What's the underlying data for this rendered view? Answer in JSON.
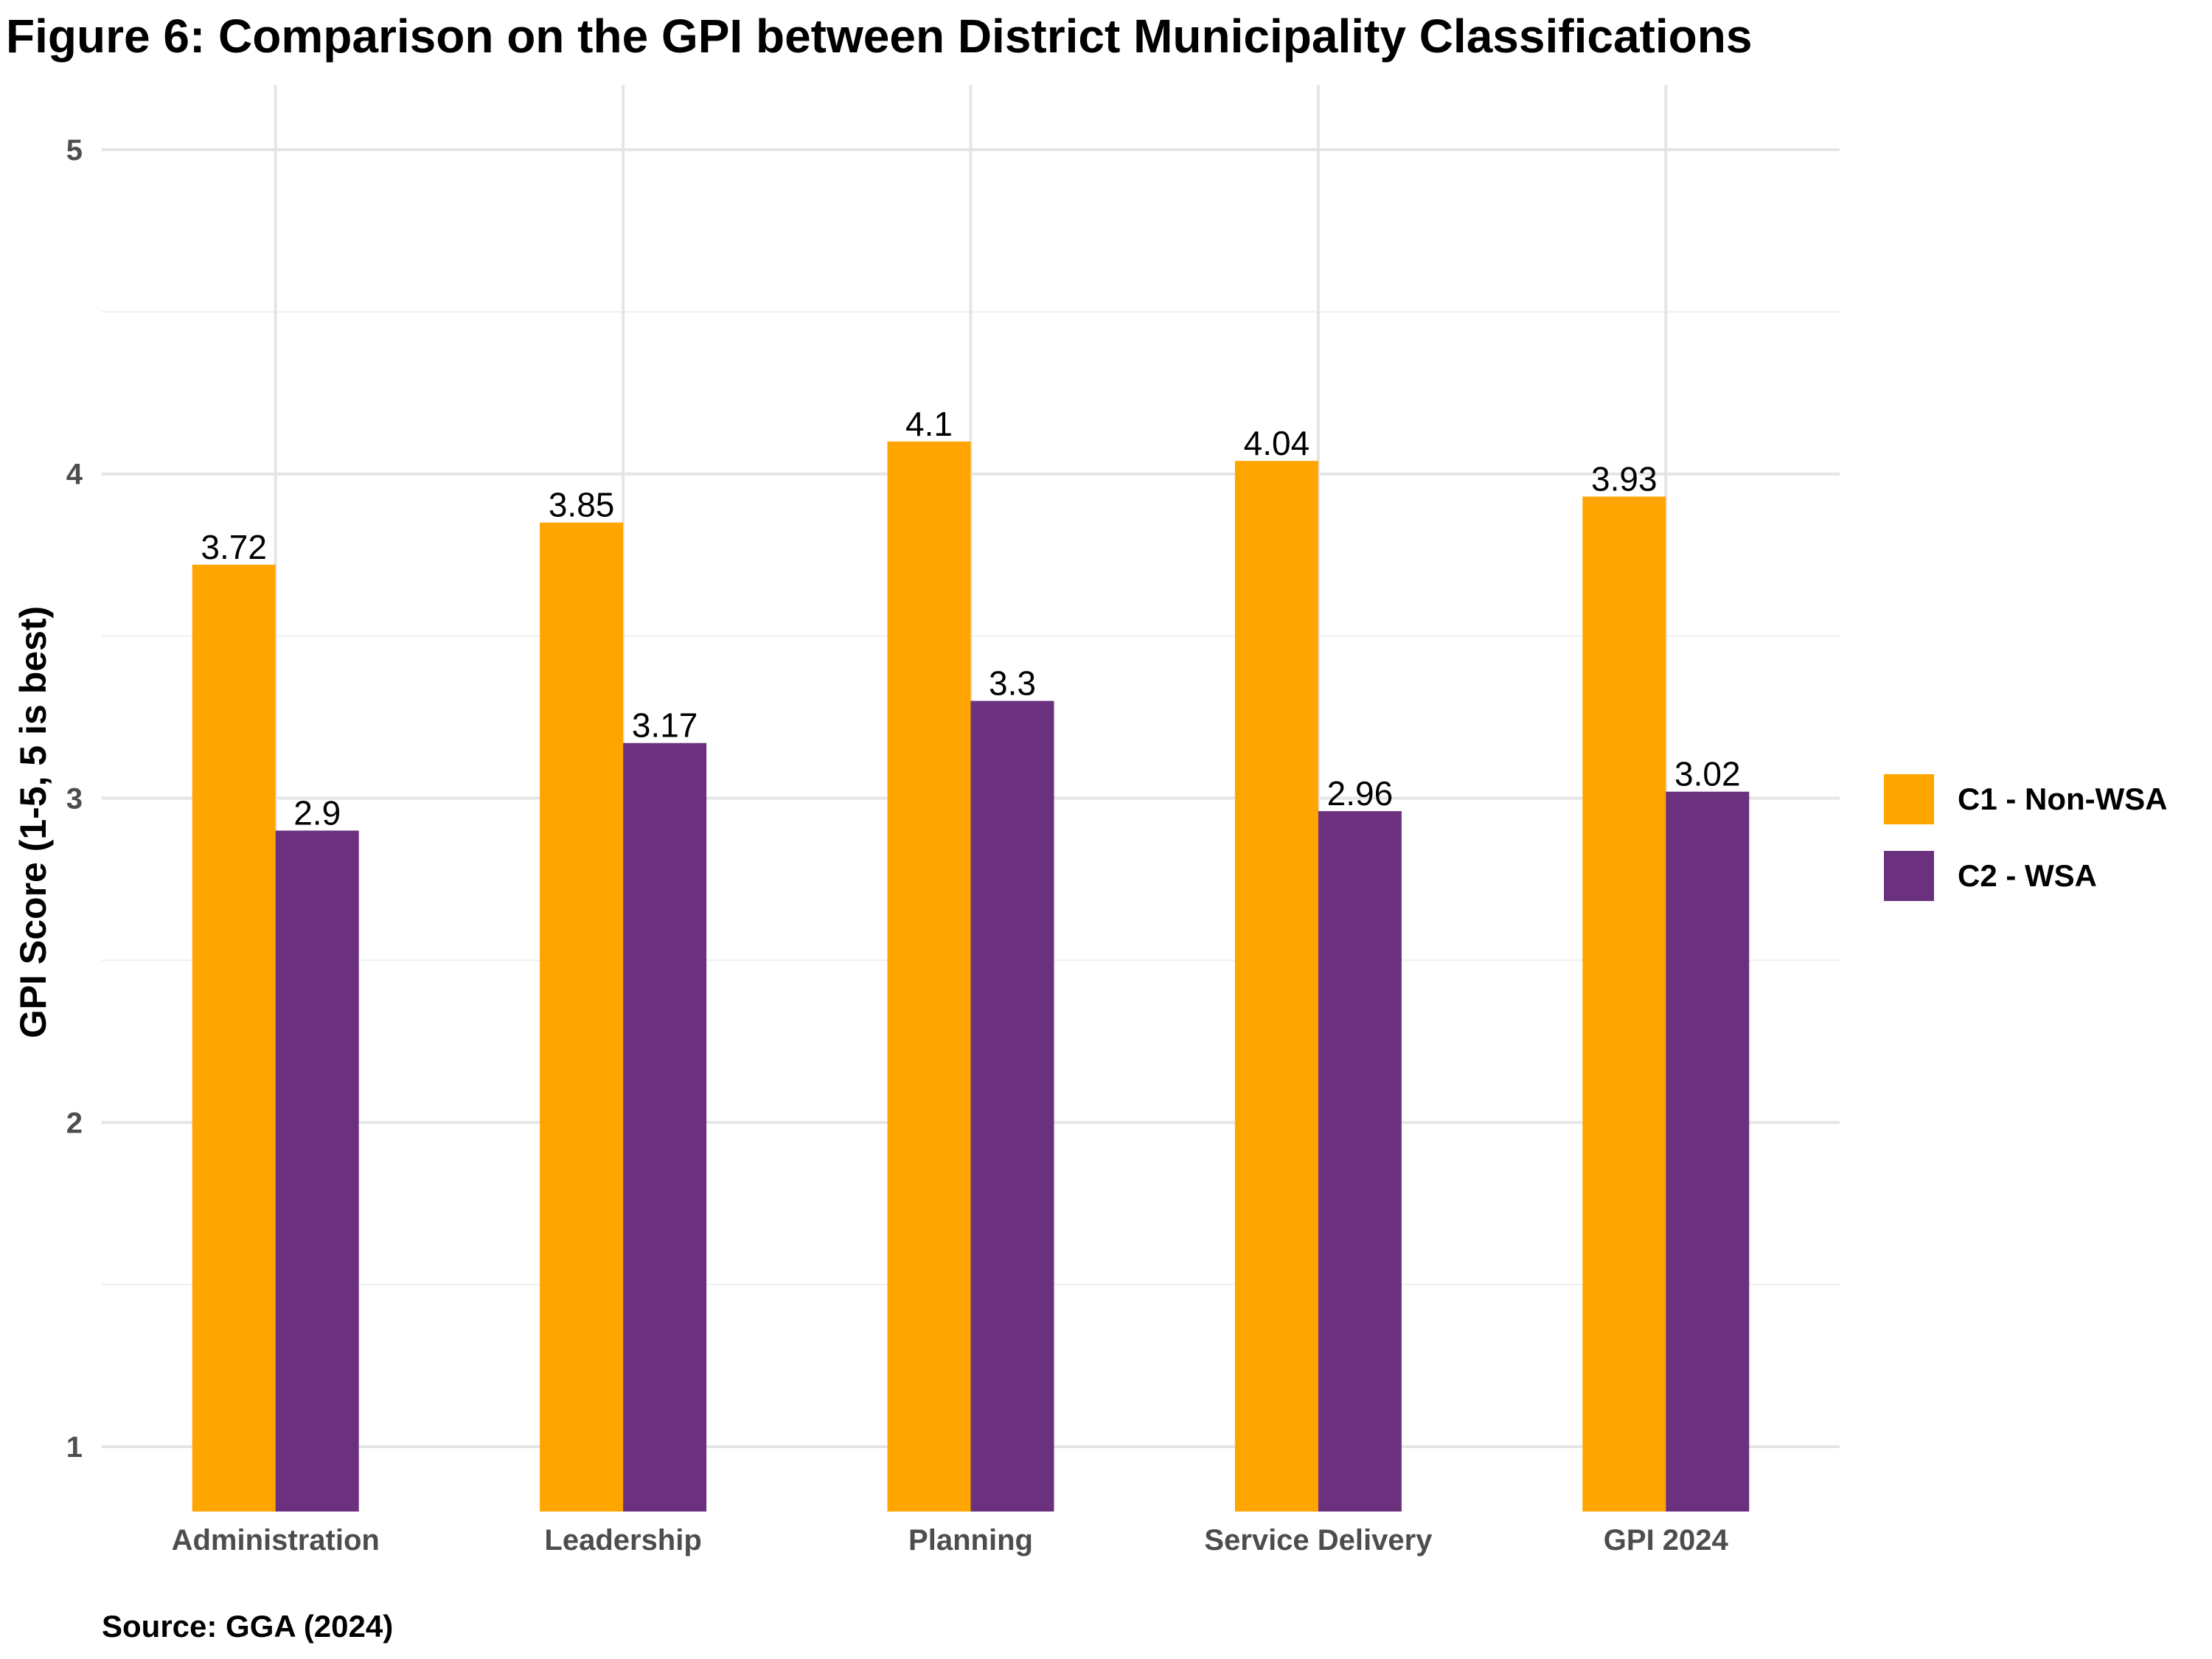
{
  "title": "Figure 6: Comparison on the GPI between District Municipality Classifications",
  "source": "Source: GGA (2024)",
  "chart_data": {
    "type": "bar",
    "title": "Figure 6: Comparison on the GPI between District Municipality Classifications",
    "xlabel": "",
    "ylabel": "GPI Score (1-5, 5 is best)",
    "categories": [
      "Administration",
      "Leadership",
      "Planning",
      "Service Delivery",
      "GPI 2024"
    ],
    "series": [
      {
        "name": "C1 - Non-WSA",
        "color": "#FFA500",
        "values": [
          3.72,
          3.85,
          4.1,
          4.04,
          3.93
        ],
        "labels": [
          "3.72",
          "3.85",
          "4.1",
          "4.04",
          "3.93"
        ]
      },
      {
        "name": "C2 - WSA",
        "color": "#6B317E",
        "values": [
          2.9,
          3.17,
          3.3,
          2.96,
          3.02
        ],
        "labels": [
          "2.9",
          "3.17",
          "3.3",
          "2.96",
          "3.02"
        ]
      }
    ],
    "ylim": [
      0.8,
      5.2
    ],
    "yticks": [
      1,
      2,
      3,
      4,
      5
    ],
    "bar_base": 0.8,
    "grid": true,
    "legend_position": "right"
  }
}
